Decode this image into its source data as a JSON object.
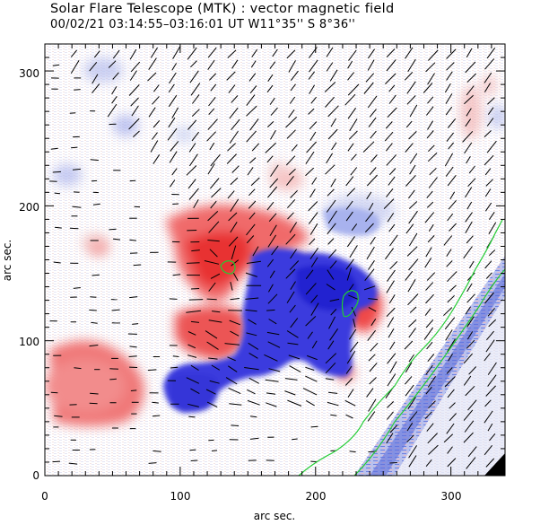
{
  "header": {
    "title": "Solar Flare Telescope (MTK) : vector magnetic field",
    "subtitle": "00/02/21   03:14:55–03:16:01 UT     W11°35''   S 8°36''"
  },
  "plot": {
    "xlabel": "arc sec.",
    "ylabel": "arc sec.",
    "xlim": [
      0,
      340
    ],
    "ylim": [
      0,
      320
    ],
    "x_ticks": [
      "0",
      "100",
      "200",
      "300"
    ],
    "y_ticks": [
      "0",
      "100",
      "200",
      "300"
    ]
  },
  "colors": {
    "positive_polarity": "#e03030",
    "negative_polarity": "#2c2cd8",
    "neutral_line": "#22cc33",
    "vectors": "#000000",
    "limb_outside": "#000000"
  }
}
